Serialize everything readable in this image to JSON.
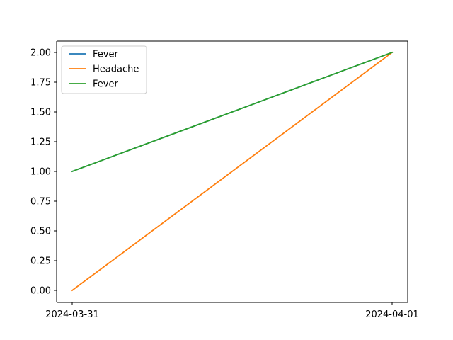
{
  "chart_data": {
    "type": "line",
    "x": [
      "2024-03-31",
      "2024-04-01"
    ],
    "x_ticks": [
      "2024-03-31",
      "2024-04-01"
    ],
    "y_ticks": [
      "0.00",
      "0.25",
      "0.50",
      "0.75",
      "1.00",
      "1.25",
      "1.50",
      "1.75",
      "2.00"
    ],
    "ylim": [
      -0.1,
      2.0
    ],
    "grid": false,
    "legend_position": "upper-left",
    "series": [
      {
        "name": "Fever",
        "values": [
          1,
          2
        ],
        "color": "#1f77b4"
      },
      {
        "name": "Headache",
        "values": [
          0,
          2
        ],
        "color": "#ff7f0e"
      },
      {
        "name": "Fever",
        "values": [
          1,
          2
        ],
        "color": "#2ca02c"
      }
    ]
  }
}
